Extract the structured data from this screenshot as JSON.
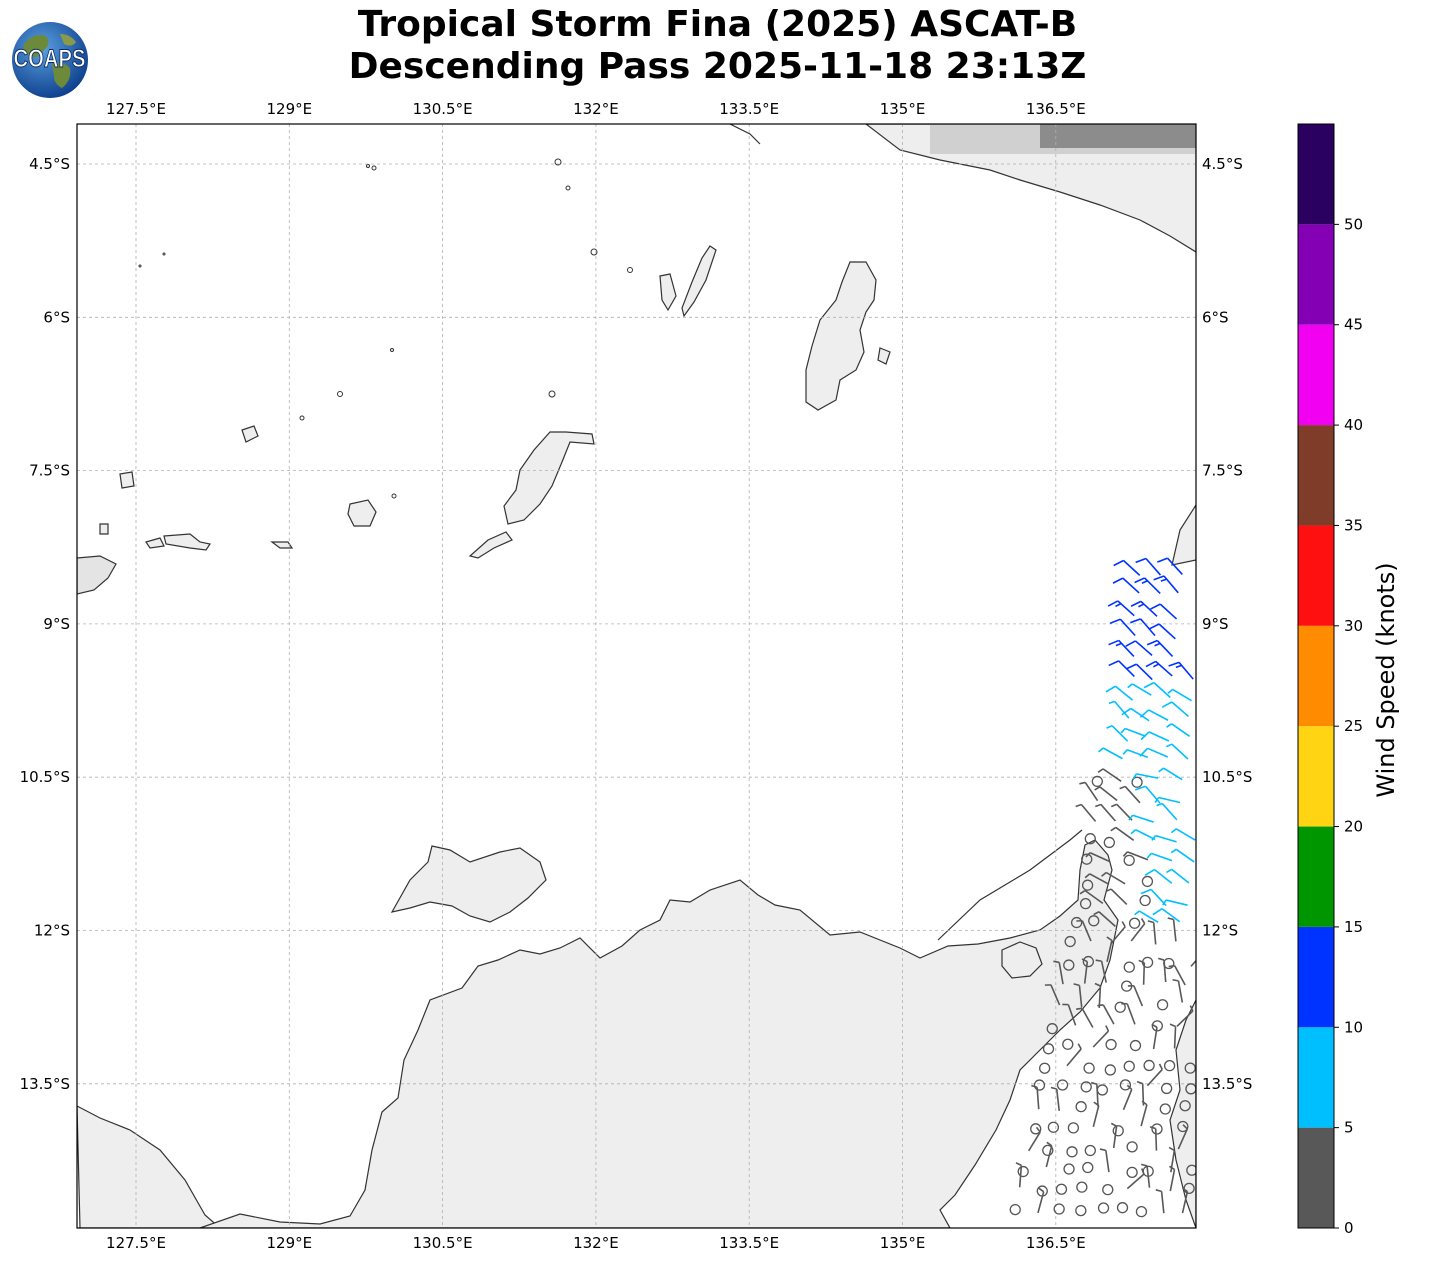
{
  "title": {
    "line1": "Tropical Storm Fina (2025) ASCAT-B",
    "line2": "Descending Pass 2025-11-18 23:13Z"
  },
  "logo": {
    "text": "COAPS",
    "icon": "globe-logo-icon"
  },
  "axes": {
    "lon_labels": [
      "127.5°E",
      "129°E",
      "130.5°E",
      "132°E",
      "133.5°E",
      "135°E",
      "136.5°E"
    ],
    "lat_labels": [
      "4.5°S",
      "6°S",
      "7.5°S",
      "9°S",
      "10.5°S",
      "12°S",
      "13.5°S"
    ],
    "lon_values": [
      127.5,
      129,
      130.5,
      132,
      133.5,
      135,
      136.5
    ],
    "lat_values": [
      -4.5,
      -6,
      -7.5,
      -9,
      -10.5,
      -12,
      -13.5
    ],
    "lon_range": [
      126.8,
      137.75
    ],
    "lat_range": [
      -14.9,
      -4.1
    ],
    "grid": true
  },
  "colorbar": {
    "label": "Wind Speed (knots)",
    "tick_labels": [
      "0",
      "5",
      "10",
      "15",
      "20",
      "25",
      "30",
      "35",
      "40",
      "45",
      "50"
    ],
    "bins": [
      {
        "min": 0,
        "max": 5,
        "color": "#585858"
      },
      {
        "min": 5,
        "max": 10,
        "color": "#00bfff"
      },
      {
        "min": 10,
        "max": 15,
        "color": "#0033ff"
      },
      {
        "min": 15,
        "max": 20,
        "color": "#009600"
      },
      {
        "min": 20,
        "max": 25,
        "color": "#ffd413"
      },
      {
        "min": 25,
        "max": 30,
        "color": "#ff8c00"
      },
      {
        "min": 30,
        "max": 35,
        "color": "#ff1010"
      },
      {
        "min": 35,
        "max": 40,
        "color": "#7f3c28"
      },
      {
        "min": 40,
        "max": 45,
        "color": "#f200f2"
      },
      {
        "min": 45,
        "max": 50,
        "color": "#8400b4"
      },
      {
        "min": 50,
        "max": 55,
        "color": "#2a0060"
      }
    ]
  },
  "colors": {
    "coast": "#333333",
    "grid": "#b0b0b0",
    "land": "#ebebeb"
  }
}
